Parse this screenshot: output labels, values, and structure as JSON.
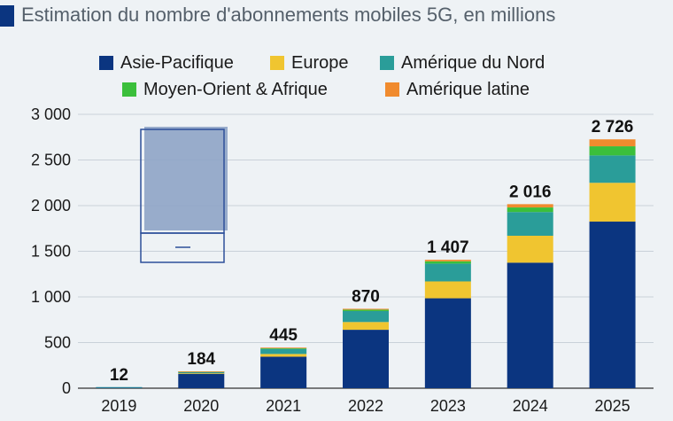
{
  "title": "Estimation du nombre d'abonnements mobiles 5G, en millions",
  "colors": {
    "header_bar": "#0b3580",
    "grid": "#c9d1d9",
    "axis": "#333333",
    "inset_fill": "#8ea4c6",
    "inset_stroke": "#2d4f9a"
  },
  "legend_row1": [
    {
      "label": "Asie-Pacifique",
      "series": 0
    },
    {
      "label": "Europe",
      "series": 1
    },
    {
      "label": "Amérique du Nord",
      "series": 2
    }
  ],
  "legend_row2": [
    {
      "label": "Moyen-Orient & Afrique",
      "series": 3
    },
    {
      "label": "Amérique latine",
      "series": 4
    }
  ],
  "chart_data": {
    "type": "bar",
    "stacked": true,
    "categories": [
      "2019",
      "2020",
      "2021",
      "2022",
      "2023",
      "2024",
      "2025"
    ],
    "series": [
      {
        "name": "Asie-Pacifique",
        "color": "#0b3580",
        "values": [
          10,
          160,
          345,
          640,
          985,
          1375,
          1825
        ]
      },
      {
        "name": "Europe",
        "color": "#f0c530",
        "values": [
          0,
          4,
          30,
          85,
          185,
          295,
          425
        ]
      },
      {
        "name": "Amérique du Nord",
        "color": "#2a9d99",
        "values": [
          2,
          18,
          55,
          120,
          195,
          260,
          300
        ]
      },
      {
        "name": "Moyen-Orient & Afrique",
        "color": "#3bbf3b",
        "values": [
          0,
          1,
          8,
          15,
          25,
          50,
          100
        ]
      },
      {
        "name": "Amérique latine",
        "color": "#f08b2e",
        "values": [
          0,
          1,
          7,
          10,
          17,
          36,
          76
        ]
      }
    ],
    "totals": [
      "12",
      "184",
      "445",
      "870",
      "1 407",
      "2 016",
      "2 726"
    ],
    "y_ticks": [
      {
        "value": 0,
        "label": "0"
      },
      {
        "value": 500,
        "label": "500"
      },
      {
        "value": 1000,
        "label": "1 000"
      },
      {
        "value": 1500,
        "label": "1 500"
      },
      {
        "value": 2000,
        "label": "2 000"
      },
      {
        "value": 2500,
        "label": "2 500"
      },
      {
        "value": 3000,
        "label": "3 000"
      }
    ],
    "ylim": [
      0,
      3000
    ],
    "grid": true,
    "legend_position": "top"
  }
}
